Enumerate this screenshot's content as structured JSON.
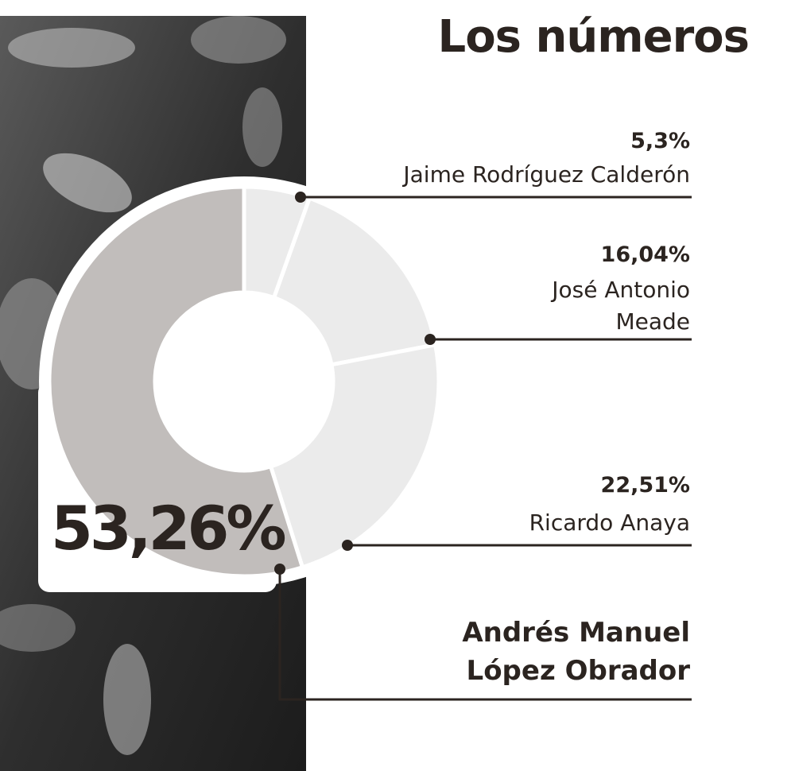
{
  "chart_data": {
    "type": "donut",
    "title": "Los números",
    "categories": [
      "Jaime Rodríguez Calderón",
      "José Antonio Meade",
      "Ricardo Anaya",
      "Andrés Manuel López Obrador"
    ],
    "values": [
      5.3,
      16.04,
      22.51,
      53.26
    ],
    "value_labels": [
      "5,3%",
      "16,04%",
      "22,51%",
      "53,26%"
    ],
    "colors": [
      "#ebebeb",
      "#ebebeb",
      "#ebebeb",
      "#c1bdbb"
    ]
  }
}
